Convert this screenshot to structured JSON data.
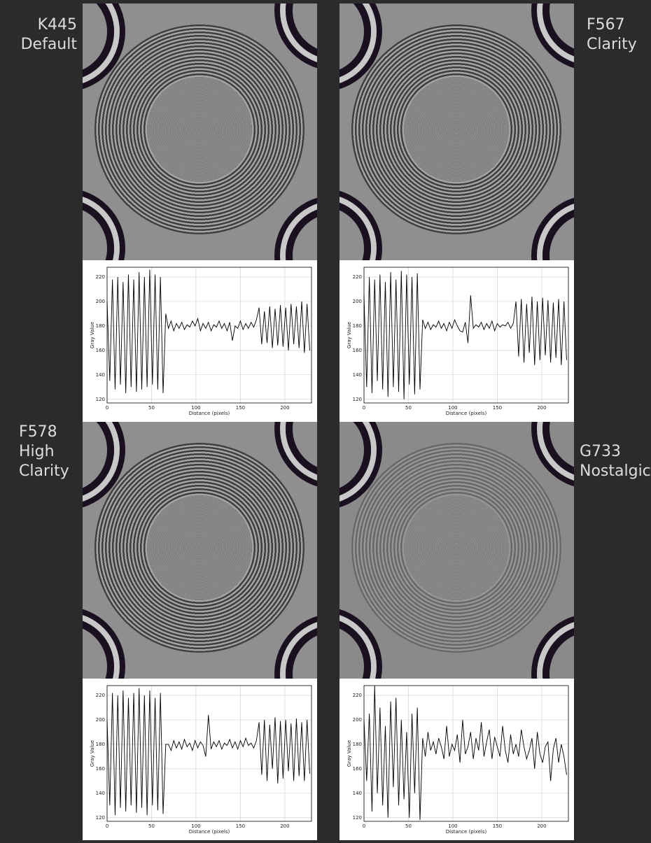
{
  "chart_data": [
    {
      "type": "line",
      "label_lines": [
        "K445",
        "Default"
      ],
      "x_label": "Distance (pixels)",
      "y_label": "Gray Value",
      "color": "#000000",
      "grid": true,
      "xlim": [
        0,
        230
      ],
      "xticks": [
        0,
        50,
        100,
        150,
        200
      ],
      "ylim": [
        117,
        228
      ],
      "yticks": [
        120,
        140,
        160,
        180,
        200,
        220
      ],
      "x": [
        0,
        3,
        6,
        9,
        12,
        15,
        18,
        21,
        24,
        27,
        30,
        33,
        36,
        39,
        42,
        45,
        48,
        51,
        54,
        57,
        60,
        63,
        66,
        69,
        72,
        75,
        78,
        81,
        84,
        87,
        90,
        93,
        96,
        99,
        102,
        105,
        108,
        111,
        114,
        117,
        120,
        123,
        126,
        129,
        132,
        135,
        138,
        141,
        144,
        147,
        150,
        153,
        156,
        159,
        162,
        165,
        168,
        171,
        174,
        177,
        180,
        183,
        186,
        189,
        192,
        195,
        198,
        201,
        204,
        207,
        210,
        213,
        216,
        219,
        222,
        225,
        228
      ],
      "values": [
        200,
        135,
        218,
        128,
        220,
        132,
        216,
        125,
        222,
        130,
        218,
        126,
        224,
        128,
        220,
        130,
        226,
        132,
        222,
        128,
        220,
        125,
        190,
        178,
        184,
        176,
        182,
        178,
        183,
        177,
        181,
        179,
        184,
        180,
        186,
        176,
        182,
        178,
        183,
        176,
        181,
        179,
        184,
        178,
        182,
        176,
        183,
        168,
        180,
        178,
        184,
        177,
        182,
        178,
        183,
        179,
        185,
        195,
        165,
        192,
        166,
        196,
        162,
        194,
        164,
        197,
        163,
        195,
        160,
        198,
        165,
        196,
        162,
        200,
        158,
        198,
        160
      ]
    },
    {
      "type": "line",
      "label_lines": [
        "F567",
        "Clarity"
      ],
      "x_label": "Distance (pixels)",
      "y_label": "Gray Value",
      "color": "#000000",
      "grid": true,
      "xlim": [
        0,
        230
      ],
      "xticks": [
        0,
        50,
        100,
        150,
        200
      ],
      "ylim": [
        117,
        228
      ],
      "yticks": [
        120,
        140,
        160,
        180,
        200,
        220
      ],
      "x": [
        0,
        3,
        6,
        9,
        12,
        15,
        18,
        21,
        24,
        27,
        30,
        33,
        36,
        39,
        42,
        45,
        48,
        51,
        54,
        57,
        60,
        63,
        66,
        69,
        72,
        75,
        78,
        81,
        84,
        87,
        90,
        93,
        96,
        99,
        102,
        105,
        108,
        111,
        114,
        117,
        120,
        123,
        126,
        129,
        132,
        135,
        138,
        141,
        144,
        147,
        150,
        153,
        156,
        159,
        162,
        165,
        168,
        171,
        174,
        177,
        180,
        183,
        186,
        189,
        192,
        195,
        198,
        201,
        204,
        207,
        210,
        213,
        216,
        219,
        222,
        225,
        228
      ],
      "values": [
        205,
        130,
        220,
        125,
        218,
        135,
        222,
        128,
        216,
        122,
        224,
        130,
        218,
        126,
        225,
        120,
        222,
        132,
        220,
        124,
        223,
        128,
        185,
        178,
        183,
        177,
        181,
        179,
        184,
        178,
        182,
        176,
        183,
        178,
        185,
        180,
        176,
        175,
        183,
        166,
        205,
        178,
        181,
        179,
        183,
        177,
        182,
        178,
        184,
        176,
        182,
        179,
        181,
        180,
        183,
        178,
        182,
        200,
        155,
        202,
        150,
        198,
        158,
        204,
        148,
        200,
        152,
        203,
        156,
        201,
        150,
        199,
        154,
        202,
        148,
        200,
        152
      ]
    },
    {
      "type": "line",
      "label_lines": [
        "F578",
        "High",
        "Clarity"
      ],
      "x_label": "Distance (pixels)",
      "y_label": "Gray Value",
      "color": "#000000",
      "grid": true,
      "xlim": [
        0,
        230
      ],
      "xticks": [
        0,
        50,
        100,
        150,
        200
      ],
      "ylim": [
        117,
        228
      ],
      "yticks": [
        120,
        140,
        160,
        180,
        200,
        220
      ],
      "x": [
        0,
        3,
        6,
        9,
        12,
        15,
        18,
        21,
        24,
        27,
        30,
        33,
        36,
        39,
        42,
        45,
        48,
        51,
        54,
        57,
        60,
        63,
        66,
        69,
        72,
        75,
        78,
        81,
        84,
        87,
        90,
        93,
        96,
        99,
        102,
        105,
        108,
        111,
        114,
        117,
        120,
        123,
        126,
        129,
        132,
        135,
        138,
        141,
        144,
        147,
        150,
        153,
        156,
        159,
        162,
        165,
        168,
        171,
        174,
        177,
        180,
        183,
        186,
        189,
        192,
        195,
        198,
        201,
        204,
        207,
        210,
        213,
        216,
        219,
        222,
        225,
        228
      ],
      "values": [
        200,
        130,
        222,
        122,
        220,
        128,
        224,
        125,
        218,
        130,
        222,
        124,
        226,
        128,
        220,
        122,
        224,
        130,
        218,
        126,
        222,
        123,
        180,
        180,
        175,
        183,
        177,
        182,
        176,
        184,
        178,
        181,
        175,
        183,
        177,
        182,
        179,
        170,
        204,
        176,
        182,
        178,
        183,
        176,
        181,
        179,
        184,
        177,
        182,
        176,
        183,
        178,
        185,
        179,
        181,
        177,
        183,
        198,
        155,
        200,
        150,
        196,
        160,
        202,
        148,
        199,
        152,
        200,
        158,
        197,
        150,
        201,
        154,
        198,
        150,
        200,
        156
      ]
    },
    {
      "type": "line",
      "label_lines": [
        "G733",
        "Nostalgic"
      ],
      "x_label": "Distance (pixels)",
      "y_label": "Gray Value",
      "color": "#000000",
      "grid": true,
      "xlim": [
        0,
        230
      ],
      "xticks": [
        0,
        50,
        100,
        150,
        200
      ],
      "ylim": [
        117,
        228
      ],
      "yticks": [
        120,
        140,
        160,
        180,
        200,
        220
      ],
      "x": [
        0,
        3,
        6,
        9,
        12,
        15,
        18,
        21,
        24,
        27,
        30,
        33,
        36,
        39,
        42,
        45,
        48,
        51,
        54,
        57,
        60,
        63,
        66,
        69,
        72,
        75,
        78,
        81,
        84,
        87,
        90,
        93,
        96,
        99,
        102,
        105,
        108,
        111,
        114,
        117,
        120,
        123,
        126,
        129,
        132,
        135,
        138,
        141,
        144,
        147,
        150,
        153,
        156,
        159,
        162,
        165,
        168,
        171,
        174,
        177,
        180,
        183,
        186,
        189,
        192,
        195,
        198,
        201,
        204,
        207,
        210,
        213,
        216,
        219,
        222,
        225,
        228
      ],
      "values": [
        200,
        150,
        205,
        125,
        228,
        140,
        210,
        130,
        195,
        120,
        215,
        145,
        218,
        130,
        200,
        135,
        190,
        120,
        205,
        140,
        210,
        118,
        185,
        170,
        190,
        175,
        182,
        172,
        185,
        178,
        168,
        195,
        170,
        180,
        175,
        188,
        165,
        200,
        172,
        178,
        190,
        168,
        185,
        175,
        198,
        170,
        182,
        192,
        168,
        186,
        178,
        170,
        195,
        175,
        165,
        188,
        172,
        180,
        170,
        192,
        178,
        168,
        175,
        185,
        160,
        190,
        172,
        165,
        178,
        182,
        150,
        176,
        185,
        165,
        180,
        170,
        155
      ]
    }
  ]
}
